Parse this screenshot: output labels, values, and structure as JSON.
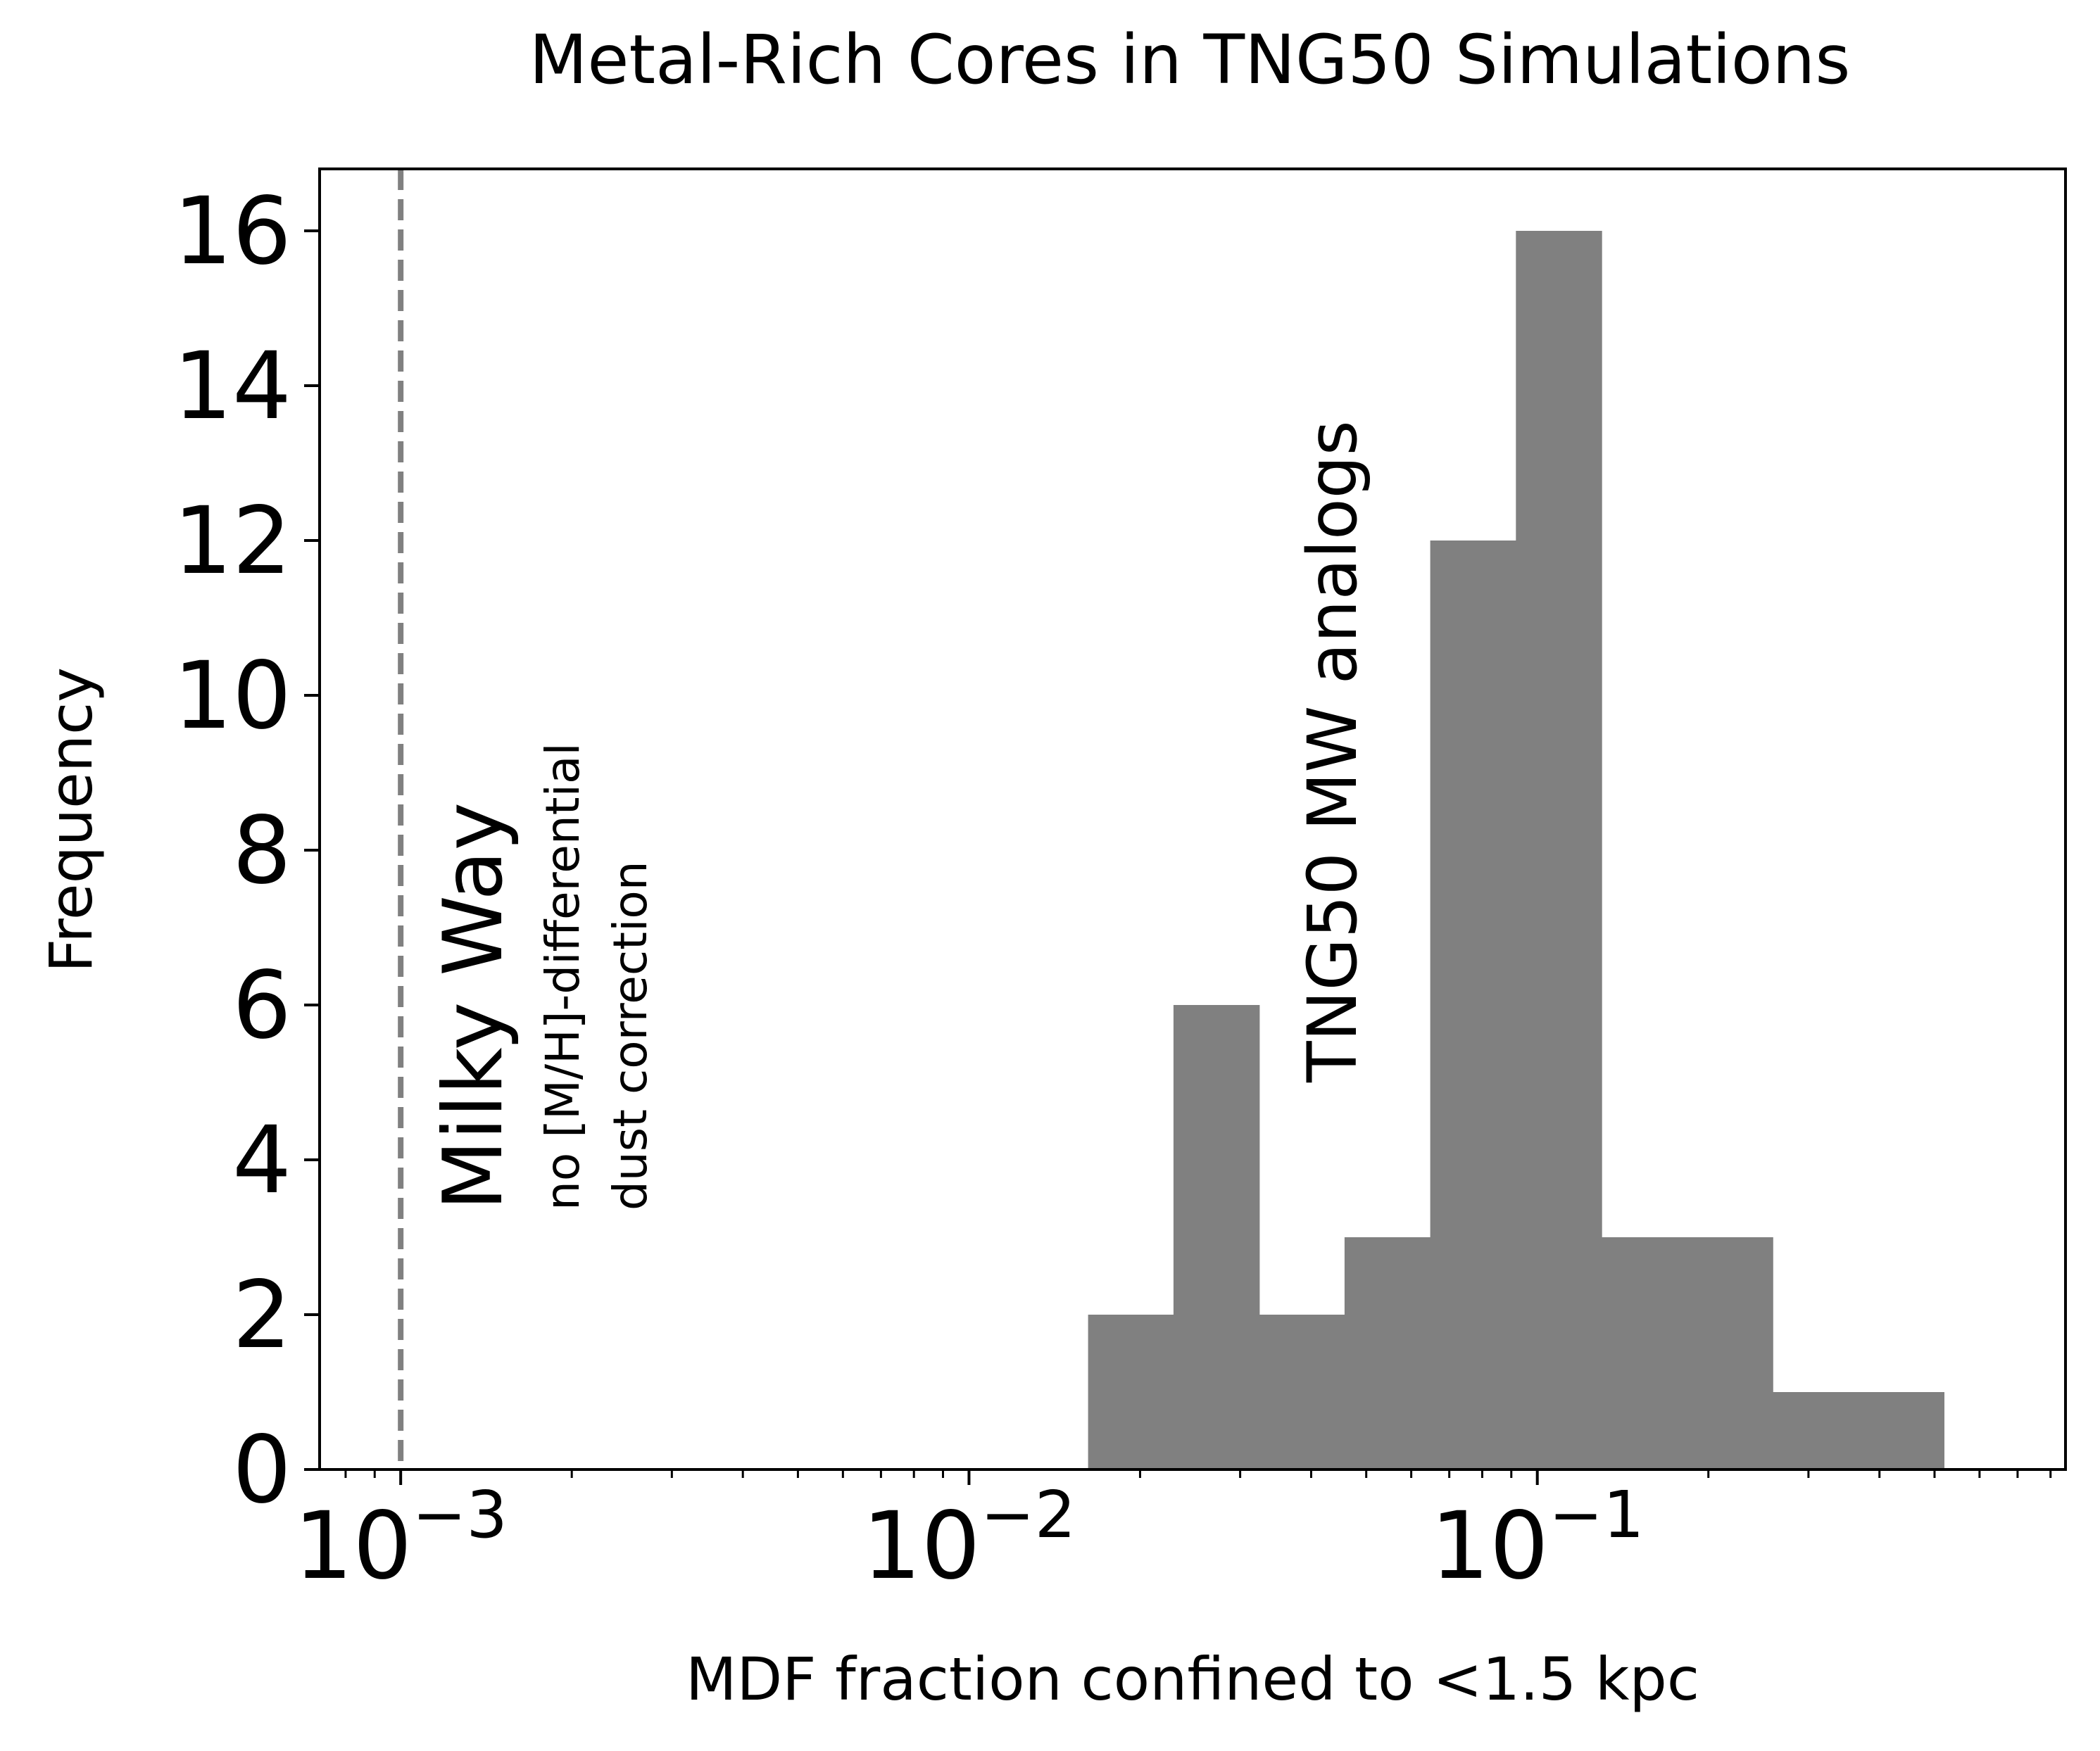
{
  "chart_data": {
    "type": "bar",
    "title": "Metal-Rich Cores in TNG50 Simulations",
    "xlabel": "MDF fraction confined to <1.5 kpc",
    "ylabel": "Frequency",
    "x_scale": "log",
    "xlim": [
      0.00072,
      0.85
    ],
    "ylim": [
      0,
      16.8
    ],
    "grid": false,
    "x_ticks": [
      {
        "value": 0.001,
        "label_base": "10",
        "label_exp": "−3"
      },
      {
        "value": 0.01,
        "label_base": "10",
        "label_exp": "−2"
      },
      {
        "value": 0.1,
        "label_base": "10",
        "label_exp": "−1"
      }
    ],
    "y_ticks": [
      0,
      2,
      4,
      6,
      8,
      10,
      12,
      14,
      16
    ],
    "bins": [
      {
        "x0": 0.0162,
        "x1": 0.0229,
        "count": 2
      },
      {
        "x0": 0.0229,
        "x1": 0.0324,
        "count": 6
      },
      {
        "x0": 0.0324,
        "x1": 0.0458,
        "count": 2
      },
      {
        "x0": 0.0458,
        "x1": 0.0648,
        "count": 3
      },
      {
        "x0": 0.0648,
        "x1": 0.0917,
        "count": 12
      },
      {
        "x0": 0.0917,
        "x1": 0.1297,
        "count": 16
      },
      {
        "x0": 0.1297,
        "x1": 0.1835,
        "count": 3
      },
      {
        "x0": 0.1835,
        "x1": 0.2595,
        "count": 3
      },
      {
        "x0": 0.2595,
        "x1": 0.3671,
        "count": 1
      },
      {
        "x0": 0.3671,
        "x1": 0.5193,
        "count": 1
      }
    ],
    "bar_color": "#808080",
    "reference_line": {
      "x": 0.001,
      "style": "dashed",
      "color": "#808080"
    },
    "annotations": {
      "milky_way": "Milky Way",
      "note_line1": "no [M/H]-differential",
      "note_line2": "dust correction",
      "tng50": "TNG50 MW analogs"
    }
  }
}
